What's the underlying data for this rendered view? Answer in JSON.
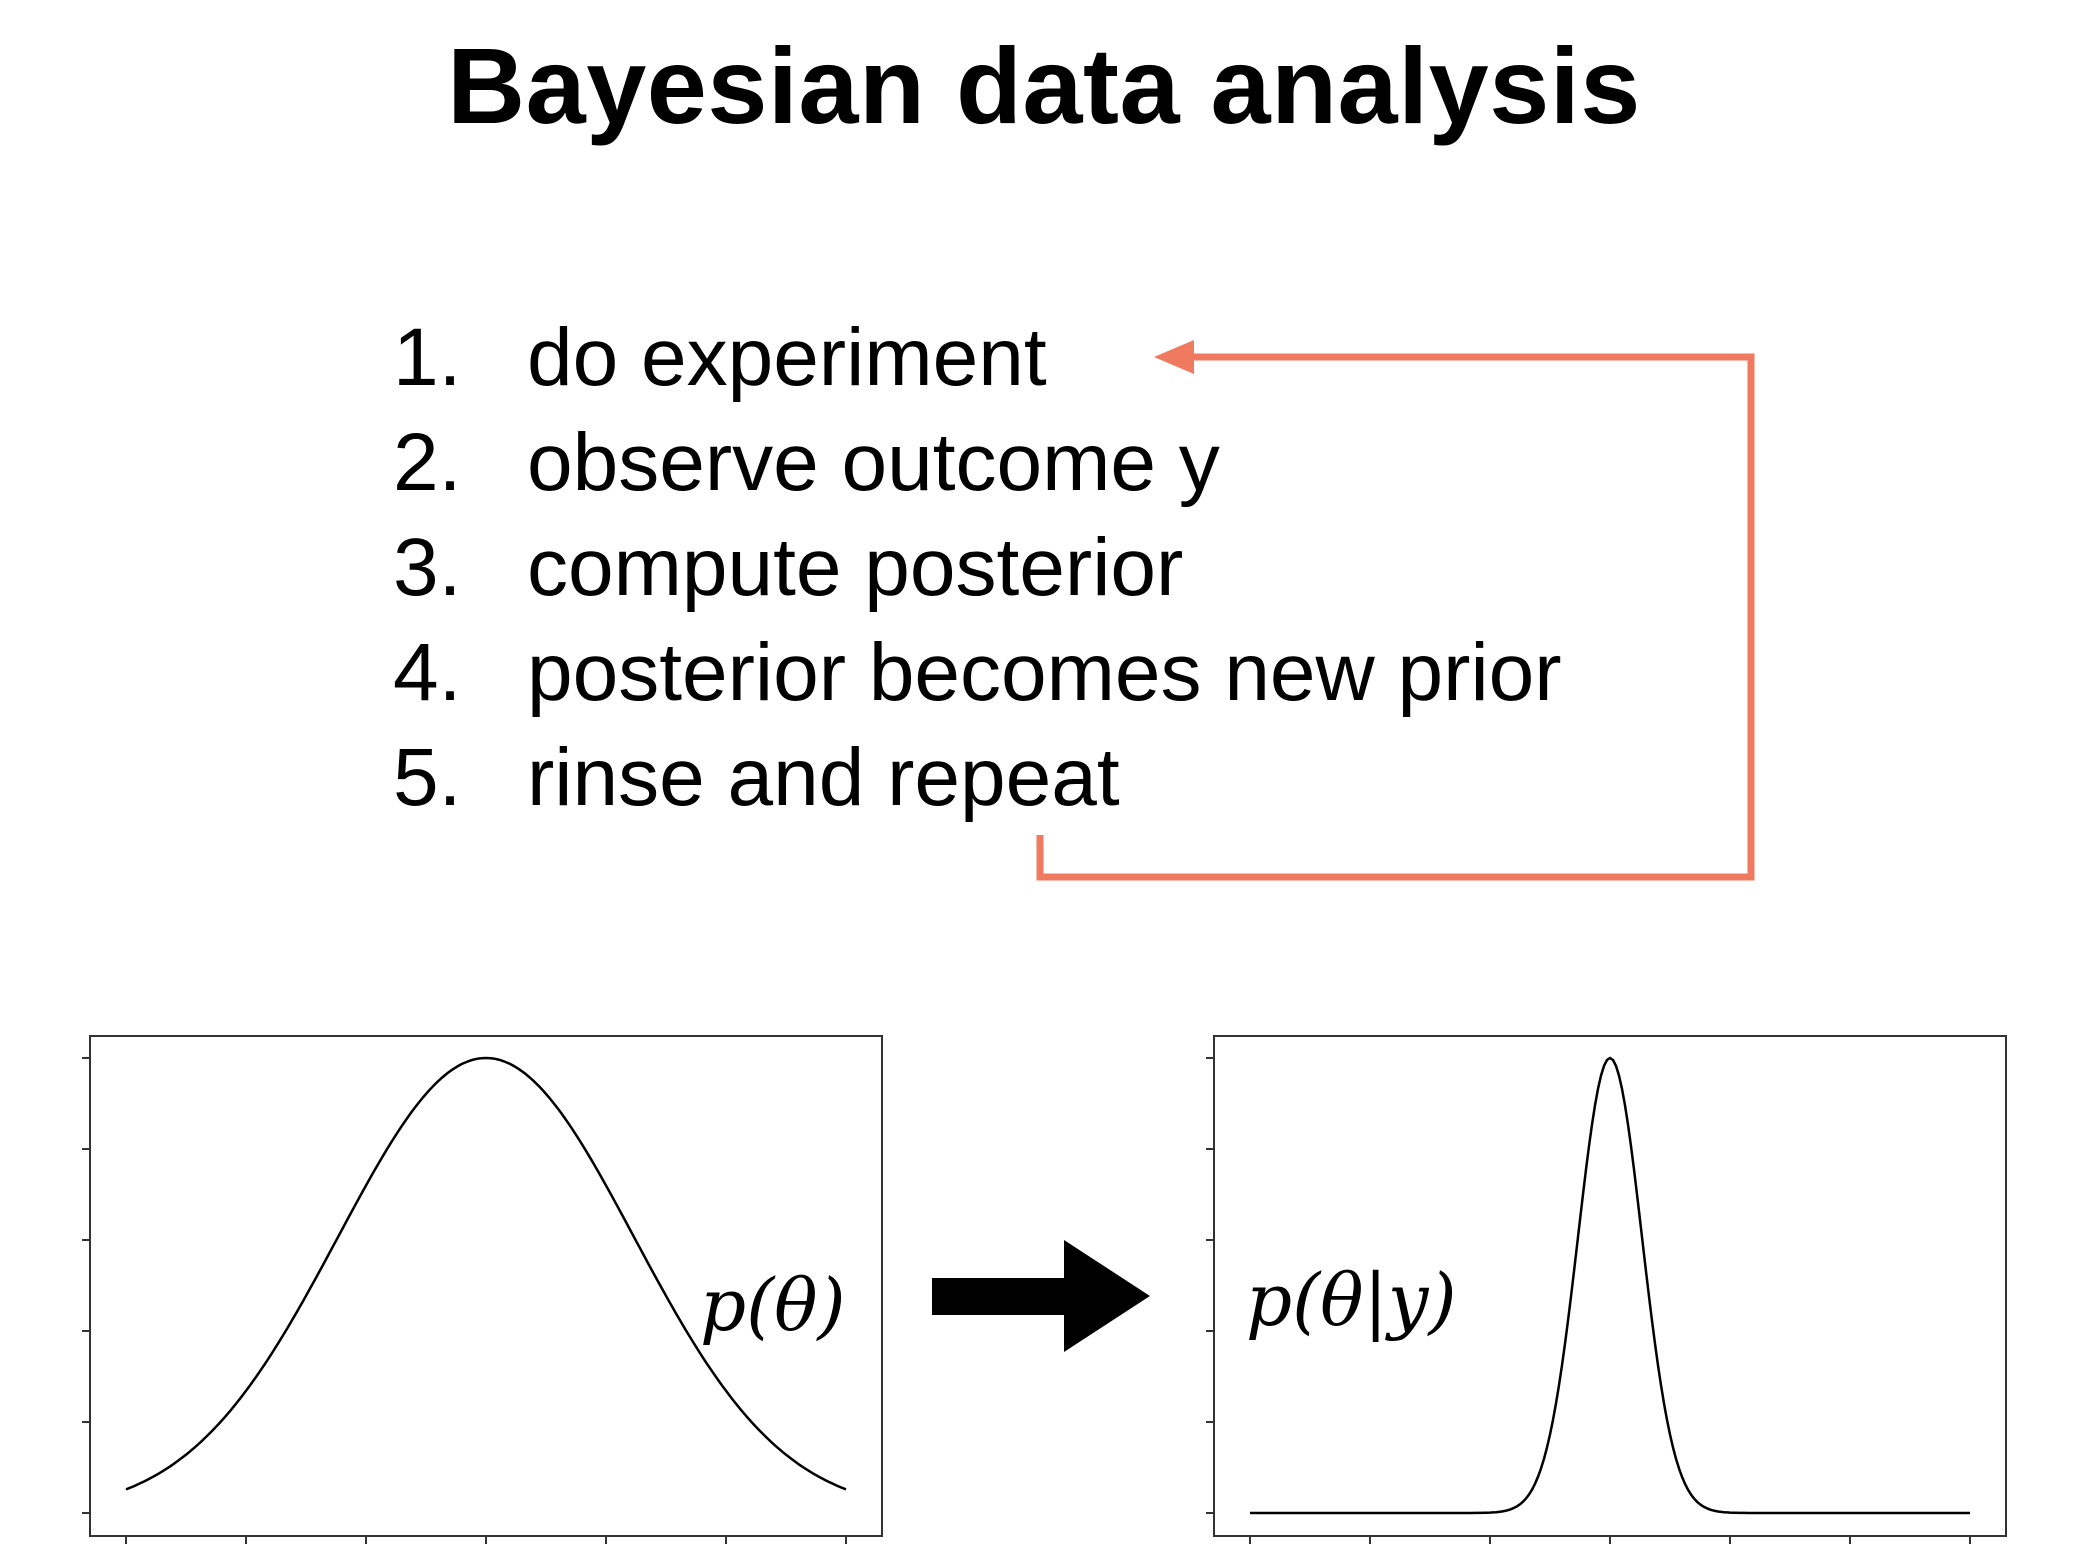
{
  "slide": {
    "title": "Bayesian data analysis"
  },
  "steps": [
    {
      "number": "1.",
      "text": "do experiment"
    },
    {
      "number": "2.",
      "text": "observe outcome y"
    },
    {
      "number": "3.",
      "text": "compute posterior"
    },
    {
      "number": "4.",
      "text": "posterior becomes new prior"
    },
    {
      "number": "5.",
      "text": "rinse and repeat"
    }
  ],
  "loop_arrow": {
    "color": "#f07a5f"
  },
  "prior_plot": {
    "label": "p(θ)",
    "curve": "gaussian-wide"
  },
  "posterior_plot": {
    "label": "p(θ|y)",
    "curve": "gaussian-narrow"
  },
  "transition_arrow": {
    "icon": "right-arrow-icon",
    "color": "#000000"
  }
}
